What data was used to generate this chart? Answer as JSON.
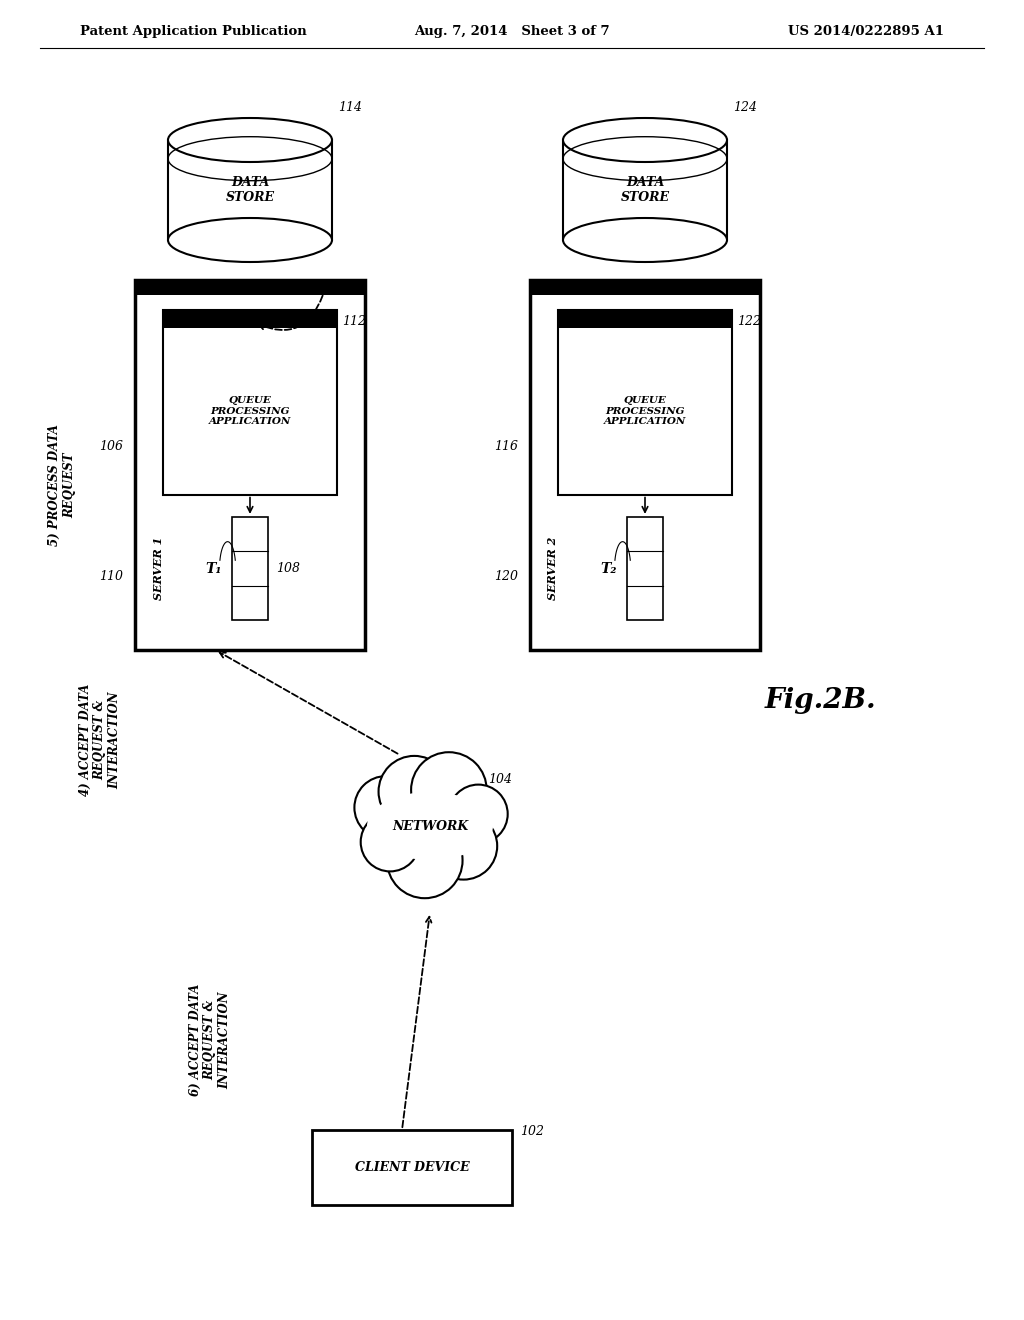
{
  "bg": "#ffffff",
  "lc": "#000000",
  "header_left": "Patent Application Publication",
  "header_center": "Aug. 7, 2014   Sheet 3 of 7",
  "header_right": "US 2014/0222895 A1",
  "fig_label": "Fig.2B.",
  "server1_label": "SERVER 1",
  "server1_ref": "106",
  "server2_label": "SERVER 2",
  "server2_ref": "116",
  "app_label": "QUEUE\nPROCESSING\nAPPLICATION",
  "app1_ref": "112",
  "app2_ref": "122",
  "queue1_ref": "108",
  "t1_label": "T₁",
  "t2_label": "T₂",
  "thresh1_ref": "110",
  "thresh2_ref": "120",
  "ds1_ref": "114",
  "ds2_ref": "124",
  "ds_label": "DATA\nSTORE",
  "net_label": "NETWORK",
  "net_ref": "104",
  "client_label": "CLIENT DEVICE",
  "client_ref": "102",
  "ann1": "5) PROCESS DATA\nREQUEST",
  "ann2": "4) ACCEPT DATA\nREQUEST &\nINTERACTION",
  "ann3": "6) ACCEPT DATA\nREQUEST &\nINTERACTION"
}
